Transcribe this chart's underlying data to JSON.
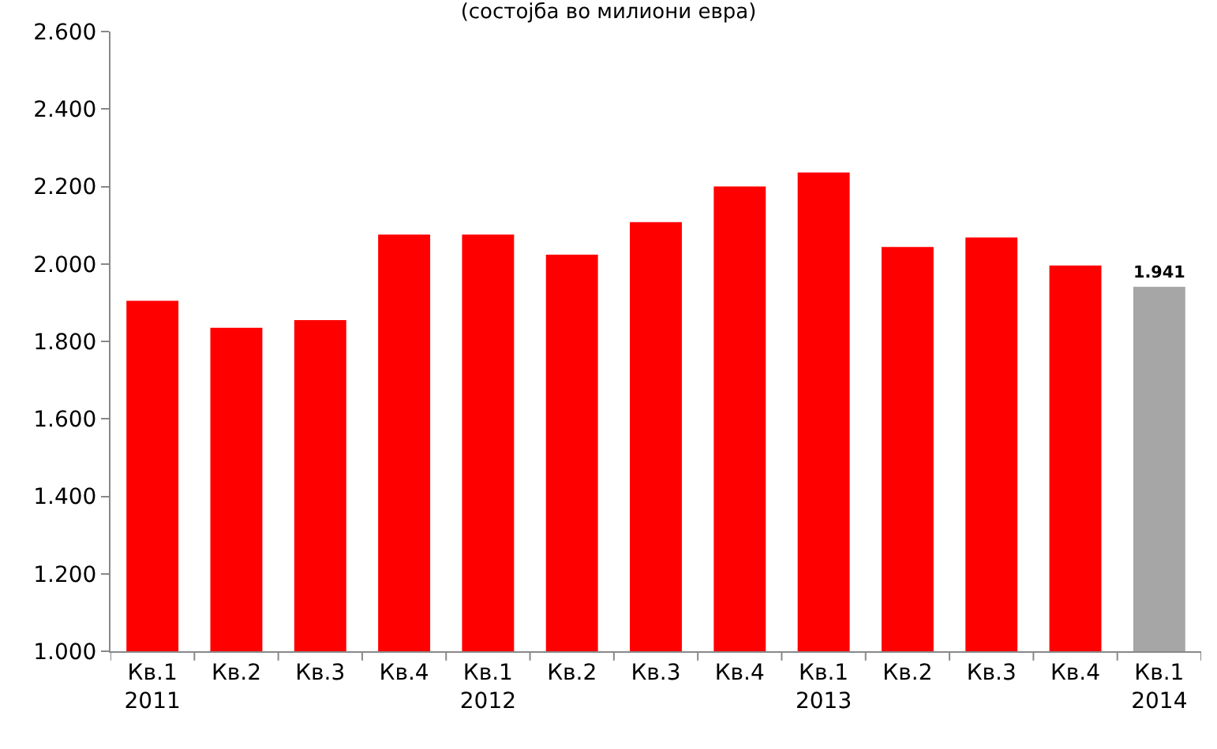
{
  "chart_data": {
    "type": "bar",
    "title": "(состојба во милиони евра)",
    "categories": [
      "Кв.1\n2011",
      "Кв.2",
      "Кв.3",
      "Кв.4",
      "Кв.1\n2012",
      "Кв.2",
      "Кв.3",
      "Кв.4",
      "Кв.1\n2013",
      "Кв.2",
      "Кв.3",
      "Кв.4",
      "Кв.1\n2014"
    ],
    "values": [
      1905,
      1835,
      1855,
      2076,
      2076,
      2024,
      2108,
      2200,
      2236,
      2044,
      2068,
      1996,
      1941
    ],
    "colors": [
      "#ff0000",
      "#ff0000",
      "#ff0000",
      "#ff0000",
      "#ff0000",
      "#ff0000",
      "#ff0000",
      "#ff0000",
      "#ff0000",
      "#ff0000",
      "#ff0000",
      "#ff0000",
      "#a6a6a6"
    ],
    "value_labels": [
      null,
      null,
      null,
      null,
      null,
      null,
      null,
      null,
      null,
      null,
      null,
      null,
      "1.941"
    ],
    "ylim": [
      1000,
      2600
    ],
    "yticks": [
      {
        "value": 1000,
        "label": "1.000"
      },
      {
        "value": 1200,
        "label": "1.200"
      },
      {
        "value": 1400,
        "label": "1.400"
      },
      {
        "value": 1600,
        "label": "1.600"
      },
      {
        "value": 1800,
        "label": "1.800"
      },
      {
        "value": 2000,
        "label": "2.000"
      },
      {
        "value": 2200,
        "label": "2.200"
      },
      {
        "value": 2400,
        "label": "2.400"
      },
      {
        "value": 2600,
        "label": "2.600"
      }
    ],
    "legend": false
  }
}
